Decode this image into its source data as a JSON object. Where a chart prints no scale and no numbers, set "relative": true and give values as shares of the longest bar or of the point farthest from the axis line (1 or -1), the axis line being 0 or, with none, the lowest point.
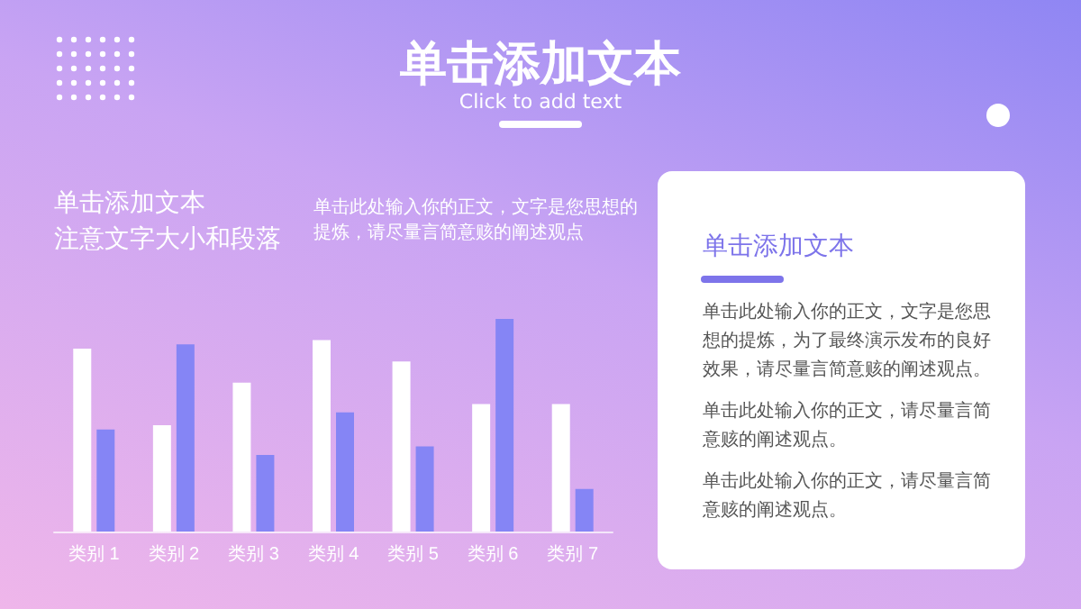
{
  "chart_data": {
    "type": "bar",
    "title": "单击添加文本",
    "subtitle": "Click to add text",
    "relative": true,
    "categories": [
      "类别 1",
      "类别 2",
      "类别 3",
      "类别 4",
      "类别 5",
      "类别 6",
      "类别 7"
    ],
    "series": [
      {
        "color": "#ffffff",
        "values": [
          0.86,
          0.5,
          0.7,
          0.9,
          0.8,
          0.6,
          0.6
        ]
      },
      {
        "color": "#8585f5",
        "values": [
          0.48,
          0.88,
          0.36,
          0.56,
          0.4,
          1,
          0.2
        ]
      }
    ],
    "annotations": [
      "单击添加文本",
      "注意文字大小和段落",
      "单击此处输入你的正文，文字是您思想的提炼，请尽量言简意赅的阐述观点",
      "单击添加文本",
      "单击此处输入你的正文，文字是您思想的提炼，为了最终演示发布的良好效果，请尽量言简意赅的阐述观点。",
      "单击此处输入你的正文，请尽量言简意赅的阐述观点。",
      "单击此处输入你的正文，请尽量言简意赅的阐述观点。"
    ]
  }
}
